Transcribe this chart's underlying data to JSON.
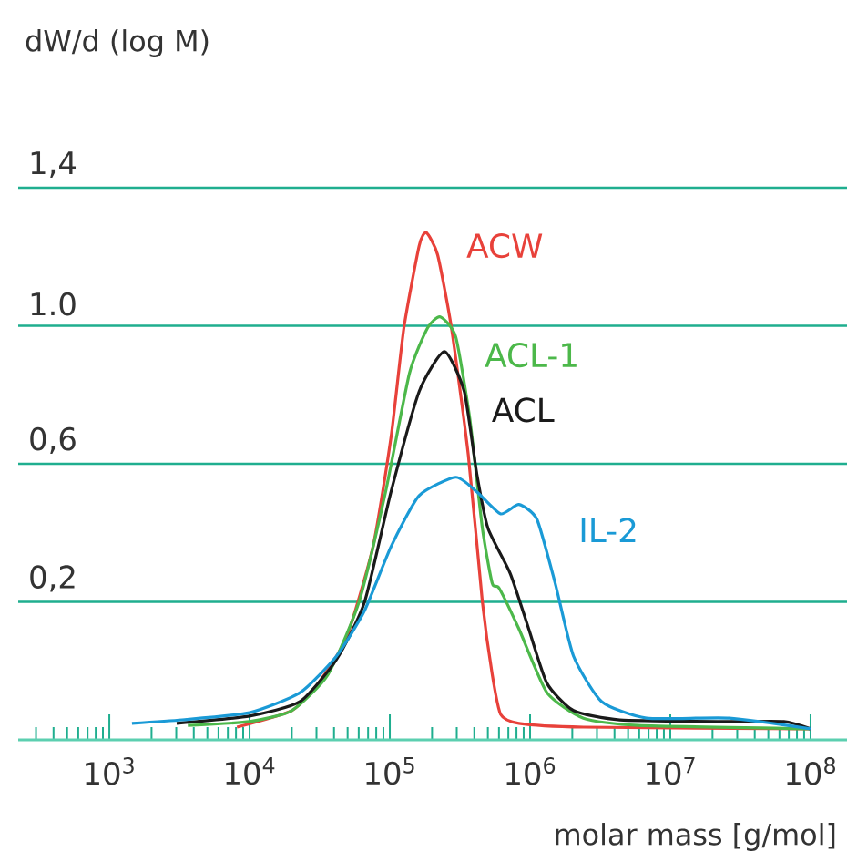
{
  "chart_data": {
    "type": "line",
    "xlabel": "molar mass [g/mol]",
    "ylabel": "dW/d (log M)",
    "log": "x",
    "grid": "y",
    "xlim": [
      224,
      182000000
    ],
    "ylim": [
      -0.2,
      1.4
    ],
    "xticks": [
      {
        "value": 1000,
        "label": "10$^{3}$"
      },
      {
        "value": 10000,
        "label": "10$^{4}$"
      },
      {
        "value": 100000,
        "label": "10$^{5}$"
      },
      {
        "value": 1000000,
        "label": "10$^{6}$"
      },
      {
        "value": 10000000,
        "label": "10$^{7}$"
      },
      {
        "value": 100000000,
        "label": "10$^{8}$"
      }
    ],
    "yticks": [
      {
        "value": 0.2,
        "label": "0,2"
      },
      {
        "value": 0.6,
        "label": "0,6"
      },
      {
        "value": 1.0,
        "label": "1.0"
      },
      {
        "value": 1.4,
        "label": "1,4"
      }
    ],
    "series": [
      {
        "name": "ACW",
        "color": "#e8413a",
        "x": [
          8130,
          20000,
          30900,
          49000,
          75900,
          102000,
          126000,
          162000,
          182000,
          219000,
          275000,
          363000,
          457000,
          537000,
          617000,
          832000,
          2400000,
          100000000
        ],
        "values": [
          -0.163,
          -0.115,
          -0.036,
          0.096,
          0.36,
          0.677,
          0.994,
          1.232,
          1.27,
          1.206,
          0.994,
          0.624,
          0.2,
          -0.01,
          -0.126,
          -0.152,
          -0.163,
          -0.168
        ]
      },
      {
        "name": "ACL-1",
        "color": "#4cb84a",
        "x": [
          3630,
          10000,
          20000,
          36300,
          60300,
          93300,
          138000,
          186000,
          229000,
          295000,
          372000,
          457000,
          537000,
          603000,
          832000,
          1320000,
          2400000,
          5890000,
          100000000
        ],
        "values": [
          -0.158,
          -0.147,
          -0.115,
          -0.01,
          0.2,
          0.519,
          0.862,
          0.994,
          1.026,
          0.968,
          0.73,
          0.413,
          0.254,
          0.239,
          0.122,
          -0.063,
          -0.137,
          -0.158,
          -0.168
        ]
      },
      {
        "name": "ACL",
        "color": "#1a1a1a",
        "x": [
          3020,
          10000,
          22900,
          41700,
          66100,
          102000,
          162000,
          245000,
          339000,
          417000,
          501000,
          724000,
          977000,
          1320000,
          2040000,
          4370000,
          26300000,
          64600000,
          100000000
        ],
        "values": [
          -0.152,
          -0.131,
          -0.089,
          0.033,
          0.2,
          0.519,
          0.81,
          0.925,
          0.81,
          0.571,
          0.413,
          0.281,
          0.122,
          -0.036,
          -0.115,
          -0.142,
          -0.147,
          -0.147,
          -0.168
        ]
      },
      {
        "name": "IL-2",
        "color": "#1a9ad6",
        "x": [
          1450,
          3310,
          10000,
          22900,
          41700,
          66100,
          102000,
          162000,
          295000,
          417000,
          617000,
          832000,
          1120000,
          1510000,
          2040000,
          3240000,
          6760000,
          26300000,
          100000000
        ],
        "values": [
          -0.152,
          -0.142,
          -0.121,
          -0.063,
          0.043,
          0.175,
          0.36,
          0.508,
          0.561,
          0.519,
          0.455,
          0.482,
          0.439,
          0.254,
          0.043,
          -0.089,
          -0.137,
          -0.137,
          -0.168
        ]
      }
    ]
  }
}
